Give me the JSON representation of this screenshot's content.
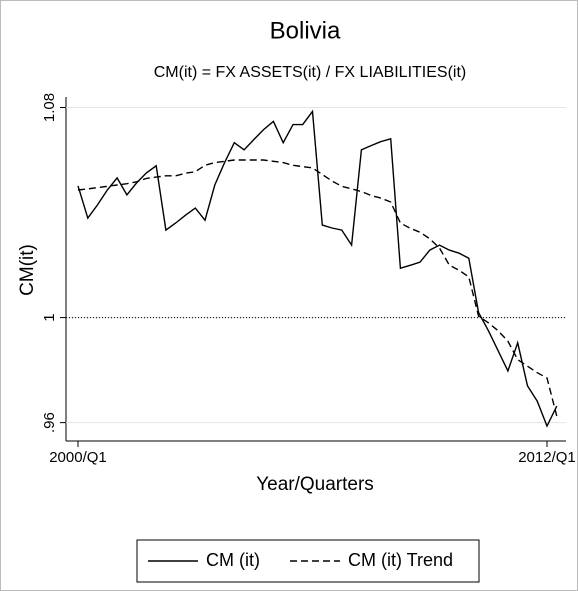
{
  "chart_data": {
    "type": "line",
    "title": "Bolivia",
    "subtitle": "CM(it) = FX ASSETS(it) / FX LIABILITIES(it)",
    "x_label": "Year/Quarters",
    "y_label": "CM(it)",
    "categories": [
      "2000/Q1",
      null,
      null,
      null,
      null,
      null,
      null,
      null,
      null,
      null,
      null,
      null,
      null,
      null,
      null,
      null,
      null,
      null,
      null,
      null,
      null,
      null,
      null,
      null,
      null,
      null,
      null,
      null,
      null,
      null,
      null,
      null,
      null,
      null,
      null,
      null,
      null,
      null,
      null,
      null,
      null,
      null,
      null,
      null,
      null,
      null,
      null,
      null,
      "2012/Q1",
      null
    ],
    "series": [
      {
        "name": "CM (it)",
        "color": "#000000",
        "dash": "solid",
        "values": [
          1.0502,
          1.0379,
          1.0429,
          1.0486,
          1.0532,
          1.0467,
          1.0513,
          1.0551,
          1.0578,
          1.0333,
          1.036,
          1.039,
          1.0417,
          1.0371,
          1.0505,
          1.059,
          1.0666,
          1.0639,
          1.0678,
          1.0716,
          1.0747,
          1.0666,
          1.0735,
          1.0735,
          1.0785,
          1.0352,
          1.0341,
          1.0333,
          1.0276,
          1.0639,
          1.0655,
          1.067,
          1.0681,
          1.0188,
          1.0199,
          1.0211,
          1.0257,
          1.0276,
          1.0257,
          1.0245,
          1.0226,
          1.0019,
          0.995,
          0.9874,
          0.9797,
          0.9904,
          0.974,
          0.9682,
          0.9587,
          0.9663
        ]
      },
      {
        "name": "CM (it) Trend",
        "color": "#000000",
        "dash": "dashed",
        "values": [
          1.0486,
          1.049,
          1.0495,
          1.05,
          1.0505,
          1.051,
          1.0517,
          1.053,
          1.0535,
          1.054,
          1.054,
          1.055,
          1.0555,
          1.058,
          1.059,
          1.0595,
          1.06,
          1.06,
          1.06,
          1.06,
          1.0595,
          1.059,
          1.058,
          1.0575,
          1.057,
          1.0545,
          1.052,
          1.05,
          1.049,
          1.048,
          1.0465,
          1.0455,
          1.044,
          1.036,
          1.034,
          1.0325,
          1.03,
          1.0265,
          1.02,
          1.018,
          1.0155,
          1.0005,
          0.998,
          0.995,
          0.991,
          0.984,
          0.9815,
          0.979,
          0.977,
          0.9625
        ]
      }
    ],
    "ylim": [
      0.953,
      1.084
    ],
    "yticks": [
      {
        "value": 0.96,
        "label": ".96"
      },
      1,
      1.08
    ],
    "reference_line": 1,
    "legend": "bottom"
  }
}
